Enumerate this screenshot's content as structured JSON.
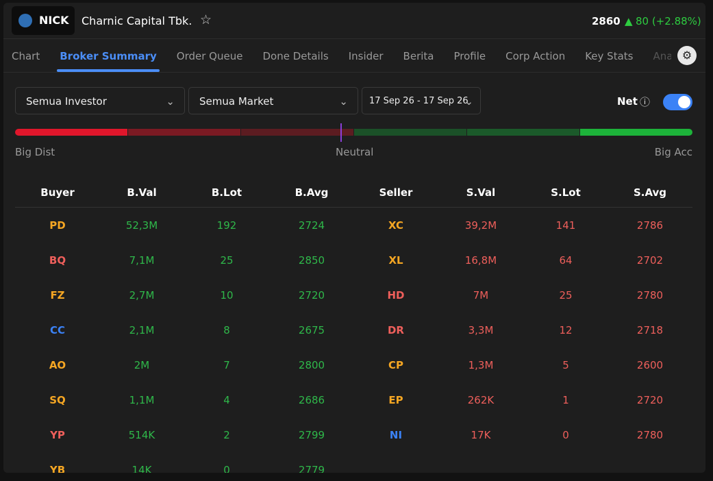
{
  "header": {
    "ticker": "NICK",
    "company": "Charnic Capital Tbk.",
    "price": "2860",
    "change": "80 (+2.88%)"
  },
  "tabs": [
    "Chart",
    "Broker Summary",
    "Order Queue",
    "Done Details",
    "Insider",
    "Berita",
    "Profile",
    "Corp Action",
    "Key Stats",
    "Analy"
  ],
  "active_tab": 1,
  "filters": {
    "investor": "Semua Investor",
    "market": "Semua Market",
    "date": "17 Sep 26 - 17 Sep 26",
    "net": "Net"
  },
  "gauge": {
    "left": "Big Dist",
    "center": "Neutral",
    "right": "Big Acc"
  },
  "table": {
    "columns": [
      "Buyer",
      "B.Val",
      "B.Lot",
      "B.Avg",
      "Seller",
      "S.Val",
      "S.Lot",
      "S.Avg"
    ],
    "buyers": [
      {
        "code": "PD",
        "color": "#f5a623",
        "val": "52,3M",
        "lot": "192",
        "avg": "2724"
      },
      {
        "code": "BQ",
        "color": "#ee5f5b",
        "val": "7,1M",
        "lot": "25",
        "avg": "2850"
      },
      {
        "code": "FZ",
        "color": "#f5a623",
        "val": "2,7M",
        "lot": "10",
        "avg": "2720"
      },
      {
        "code": "CC",
        "color": "#3b82f6",
        "val": "2,1M",
        "lot": "8",
        "avg": "2675"
      },
      {
        "code": "AO",
        "color": "#f5a623",
        "val": "2M",
        "lot": "7",
        "avg": "2800"
      },
      {
        "code": "SQ",
        "color": "#f5a623",
        "val": "1,1M",
        "lot": "4",
        "avg": "2686"
      },
      {
        "code": "YP",
        "color": "#ee5f5b",
        "val": "514K",
        "lot": "2",
        "avg": "2799"
      },
      {
        "code": "YB",
        "color": "#f5a623",
        "val": "14K",
        "lot": "0",
        "avg": "2779"
      }
    ],
    "sellers": [
      {
        "code": "XC",
        "color": "#f5a623",
        "val": "39,2M",
        "lot": "141",
        "avg": "2786"
      },
      {
        "code": "XL",
        "color": "#f5a623",
        "val": "16,8M",
        "lot": "64",
        "avg": "2702"
      },
      {
        "code": "HD",
        "color": "#ee5f5b",
        "val": "7M",
        "lot": "25",
        "avg": "2780"
      },
      {
        "code": "DR",
        "color": "#ee5f5b",
        "val": "3,3M",
        "lot": "12",
        "avg": "2718"
      },
      {
        "code": "CP",
        "color": "#f5a623",
        "val": "1,3M",
        "lot": "5",
        "avg": "2600"
      },
      {
        "code": "EP",
        "color": "#f5a623",
        "val": "262K",
        "lot": "1",
        "avg": "2720"
      },
      {
        "code": "NI",
        "color": "#3b82f6",
        "val": "17K",
        "lot": "0",
        "avg": "2780"
      }
    ]
  }
}
